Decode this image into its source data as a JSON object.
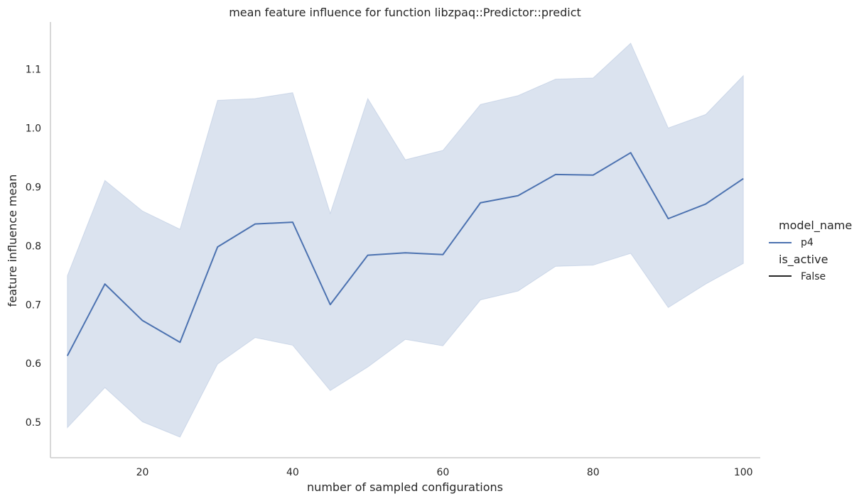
{
  "chart_data": {
    "type": "line",
    "title": "mean feature influence for function libzpaq::Predictor::predict",
    "xlabel": "number of sampled configurations",
    "ylabel": "feature influence mean",
    "xlim": [
      7.75,
      102.25
    ],
    "ylim": [
      0.44,
      1.18
    ],
    "x_ticks": [
      20,
      40,
      60,
      80,
      100
    ],
    "y_ticks": [
      0.5,
      0.6,
      0.7,
      0.8,
      0.9,
      1.0,
      1.1
    ],
    "x_tick_labels": [
      "20",
      "40",
      "60",
      "80",
      "100"
    ],
    "y_tick_labels": [
      "0.5",
      "0.6",
      "0.7",
      "0.8",
      "0.9",
      "1.0",
      "1.1"
    ],
    "grid": false,
    "legend_placement": "right",
    "x": [
      10,
      15,
      20,
      25,
      30,
      35,
      40,
      45,
      50,
      55,
      60,
      65,
      70,
      75,
      80,
      85,
      90,
      95,
      100
    ],
    "series": [
      {
        "name": "p4",
        "color": "#4c72b0",
        "values": [
          0.613,
          0.735,
          0.673,
          0.636,
          0.798,
          0.837,
          0.84,
          0.7,
          0.784,
          0.788,
          0.785,
          0.873,
          0.885,
          0.921,
          0.92,
          0.958,
          0.846,
          0.871,
          0.914
        ],
        "ci_lower": [
          0.491,
          0.559,
          0.501,
          0.475,
          0.599,
          0.644,
          0.631,
          0.554,
          0.594,
          0.641,
          0.63,
          0.708,
          0.723,
          0.765,
          0.767,
          0.787,
          0.695,
          0.735,
          0.77
        ],
        "ci_upper": [
          0.749,
          0.911,
          0.859,
          0.828,
          1.047,
          1.05,
          1.06,
          0.855,
          1.05,
          0.946,
          0.962,
          1.04,
          1.055,
          1.083,
          1.085,
          1.144,
          1.0,
          1.023,
          1.089
        ]
      }
    ],
    "legend": {
      "title_1": "model_name",
      "item_1": "p4",
      "title_2": "is_active",
      "item_2": "False",
      "item_2_color": "#262626"
    }
  }
}
